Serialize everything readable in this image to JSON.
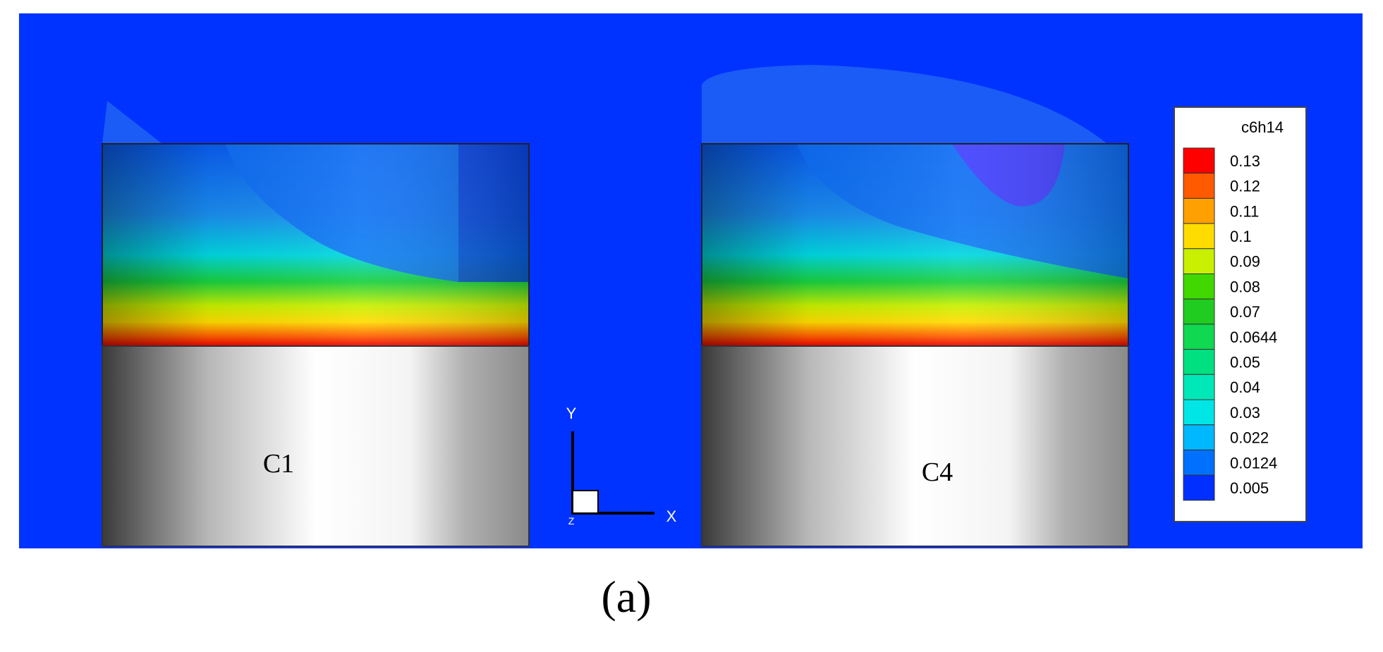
{
  "figure_label": "(a)",
  "cylinders": [
    {
      "label": "C1"
    },
    {
      "label": "C4"
    }
  ],
  "axes": {
    "y": "Y",
    "x": "X",
    "z": "Z"
  },
  "legend": {
    "title": "c6h14",
    "levels": [
      {
        "label": "0.13",
        "color": "#ff0000"
      },
      {
        "label": "0.12",
        "color": "#ff5a00"
      },
      {
        "label": "0.11",
        "color": "#ffa000"
      },
      {
        "label": "0.1",
        "color": "#ffdc00"
      },
      {
        "label": "0.09",
        "color": "#c8f000"
      },
      {
        "label": "0.08",
        "color": "#40d800"
      },
      {
        "label": "0.07",
        "color": "#20cc20"
      },
      {
        "label": "0.0644",
        "color": "#10d850"
      },
      {
        "label": "0.05",
        "color": "#00e080"
      },
      {
        "label": "0.04",
        "color": "#00e8b8"
      },
      {
        "label": "0.03",
        "color": "#00e6e6"
      },
      {
        "label": "0.022",
        "color": "#00b8ff"
      },
      {
        "label": "0.0124",
        "color": "#0070ff"
      },
      {
        "label": "0.005",
        "color": "#0030ff"
      }
    ]
  }
}
